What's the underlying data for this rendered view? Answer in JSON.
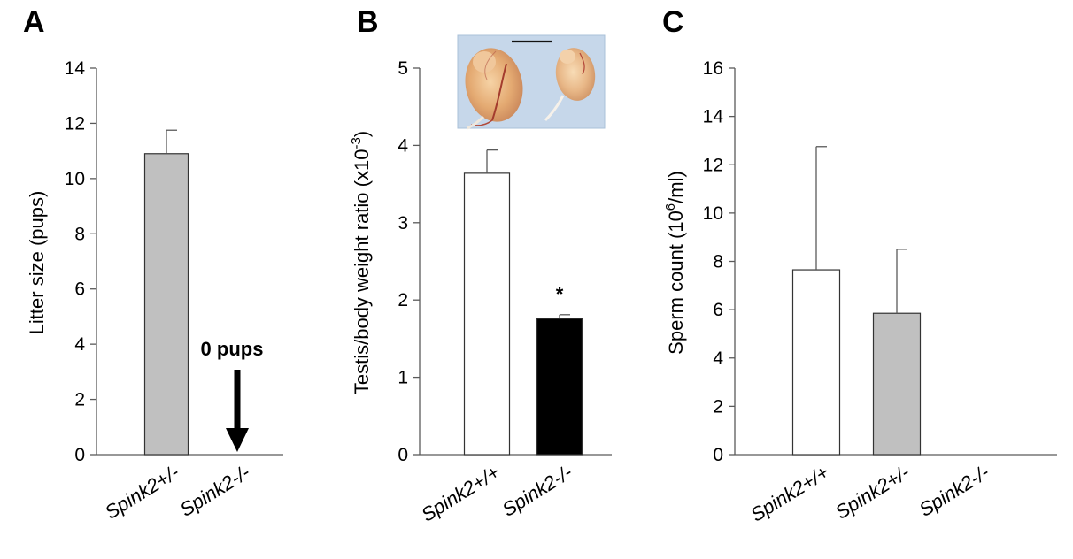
{
  "chart_data": [
    {
      "type": "bar",
      "panel": "A",
      "categories": [
        "Spink2+/-",
        "Spink2-/-"
      ],
      "values": [
        10.9,
        0
      ],
      "errors": [
        0.85,
        0
      ],
      "colors": [
        "#c0c0c0",
        "#c0c0c0"
      ],
      "xlabel": "",
      "ylabel": "Litter size (pups)",
      "ylim": [
        0,
        14
      ],
      "yticks": [
        0,
        2,
        4,
        6,
        8,
        10,
        12,
        14
      ],
      "grid": false,
      "annotations": [
        {
          "text": "0 pups",
          "category": "Spink2-/-",
          "arrow": "down"
        }
      ]
    },
    {
      "type": "bar",
      "panel": "B",
      "categories": [
        "Spink2+/+",
        "Spink2-/-"
      ],
      "values": [
        3.64,
        1.76
      ],
      "errors": [
        0.3,
        0.05
      ],
      "colors": [
        "#ffffff",
        "#000000"
      ],
      "xlabel": "",
      "ylabel": "Testis/body weight ratio (x10",
      "ylabel_sup": "-3",
      "ylabel_end": ")",
      "ylim": [
        0,
        5
      ],
      "yticks": [
        0,
        1,
        2,
        3,
        4,
        5
      ],
      "grid": false,
      "annotations": [
        {
          "text": "*",
          "category": "Spink2-/-"
        }
      ],
      "inset_image": "testes-photo"
    },
    {
      "type": "bar",
      "panel": "C",
      "categories": [
        "Spink2+/+",
        "Spink2+/-",
        "Spink2-/-"
      ],
      "values": [
        7.65,
        5.85,
        0
      ],
      "errors": [
        5.1,
        2.65,
        0
      ],
      "colors": [
        "#ffffff",
        "#c0c0c0",
        "#ffffff"
      ],
      "xlabel": "",
      "ylabel": "Sperm count (10",
      "ylabel_sup": "6",
      "ylabel_end": "/ml)",
      "ylim": [
        0,
        16
      ],
      "yticks": [
        0,
        2,
        4,
        6,
        8,
        10,
        12,
        14,
        16
      ],
      "grid": false
    }
  ]
}
